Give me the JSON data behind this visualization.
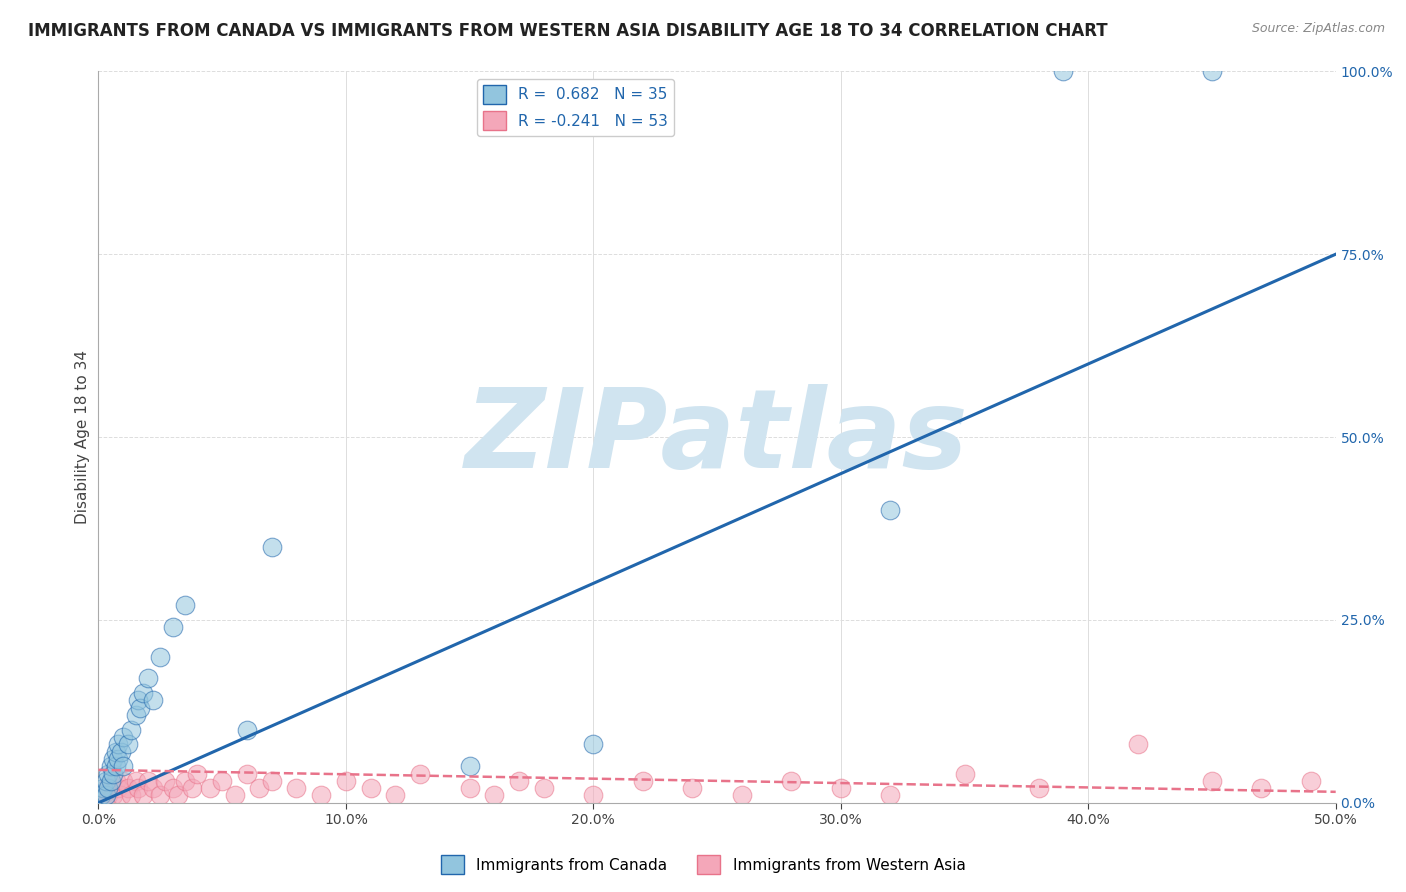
{
  "title": "IMMIGRANTS FROM CANADA VS IMMIGRANTS FROM WESTERN ASIA DISABILITY AGE 18 TO 34 CORRELATION CHART",
  "source": "Source: ZipAtlas.com",
  "ylabel": "Disability Age 18 to 34",
  "xlim": [
    0.0,
    0.5
  ],
  "ylim": [
    0.0,
    1.0
  ],
  "xticks": [
    0.0,
    0.1,
    0.2,
    0.3,
    0.4,
    0.5
  ],
  "xticklabels": [
    "0.0%",
    "10.0%",
    "20.0%",
    "30.0%",
    "40.0%",
    "50.0%"
  ],
  "yticks_right": [
    0.0,
    0.25,
    0.5,
    0.75,
    1.0
  ],
  "yticklabels_right": [
    "0.0%",
    "25.0%",
    "50.0%",
    "75.0%",
    "100.0%"
  ],
  "legend_label_blue": "R =  0.682   N = 35",
  "legend_label_pink": "R = -0.241   N = 53",
  "blue_color": "#92c5de",
  "pink_color": "#f4a7b9",
  "blue_line_color": "#2166ac",
  "pink_line_color": "#e8738a",
  "watermark": "ZIPatlas",
  "watermark_color": "#d0e4f0",
  "background_color": "#ffffff",
  "grid_color": "#dddddd",
  "blue_scatter": [
    [
      0.001,
      0.01
    ],
    [
      0.002,
      0.02
    ],
    [
      0.003,
      0.01
    ],
    [
      0.003,
      0.03
    ],
    [
      0.004,
      0.02
    ],
    [
      0.004,
      0.04
    ],
    [
      0.005,
      0.03
    ],
    [
      0.005,
      0.05
    ],
    [
      0.006,
      0.04
    ],
    [
      0.006,
      0.06
    ],
    [
      0.007,
      0.05
    ],
    [
      0.007,
      0.07
    ],
    [
      0.008,
      0.06
    ],
    [
      0.008,
      0.08
    ],
    [
      0.009,
      0.07
    ],
    [
      0.01,
      0.05
    ],
    [
      0.01,
      0.09
    ],
    [
      0.012,
      0.08
    ],
    [
      0.013,
      0.1
    ],
    [
      0.015,
      0.12
    ],
    [
      0.016,
      0.14
    ],
    [
      0.017,
      0.13
    ],
    [
      0.018,
      0.15
    ],
    [
      0.02,
      0.17
    ],
    [
      0.022,
      0.14
    ],
    [
      0.025,
      0.2
    ],
    [
      0.03,
      0.24
    ],
    [
      0.035,
      0.27
    ],
    [
      0.06,
      0.1
    ],
    [
      0.07,
      0.35
    ],
    [
      0.32,
      0.4
    ],
    [
      0.39,
      1.0
    ],
    [
      0.45,
      1.0
    ],
    [
      0.15,
      0.05
    ],
    [
      0.2,
      0.08
    ]
  ],
  "pink_scatter": [
    [
      0.001,
      0.01
    ],
    [
      0.002,
      0.01
    ],
    [
      0.003,
      0.02
    ],
    [
      0.004,
      0.01
    ],
    [
      0.005,
      0.02
    ],
    [
      0.006,
      0.01
    ],
    [
      0.007,
      0.03
    ],
    [
      0.008,
      0.02
    ],
    [
      0.009,
      0.01
    ],
    [
      0.01,
      0.03
    ],
    [
      0.012,
      0.02
    ],
    [
      0.013,
      0.01
    ],
    [
      0.015,
      0.03
    ],
    [
      0.016,
      0.02
    ],
    [
      0.018,
      0.01
    ],
    [
      0.02,
      0.03
    ],
    [
      0.022,
      0.02
    ],
    [
      0.025,
      0.01
    ],
    [
      0.027,
      0.03
    ],
    [
      0.03,
      0.02
    ],
    [
      0.032,
      0.01
    ],
    [
      0.035,
      0.03
    ],
    [
      0.038,
      0.02
    ],
    [
      0.04,
      0.04
    ],
    [
      0.045,
      0.02
    ],
    [
      0.05,
      0.03
    ],
    [
      0.055,
      0.01
    ],
    [
      0.06,
      0.04
    ],
    [
      0.065,
      0.02
    ],
    [
      0.07,
      0.03
    ],
    [
      0.08,
      0.02
    ],
    [
      0.09,
      0.01
    ],
    [
      0.1,
      0.03
    ],
    [
      0.11,
      0.02
    ],
    [
      0.12,
      0.01
    ],
    [
      0.13,
      0.04
    ],
    [
      0.15,
      0.02
    ],
    [
      0.16,
      0.01
    ],
    [
      0.17,
      0.03
    ],
    [
      0.18,
      0.02
    ],
    [
      0.2,
      0.01
    ],
    [
      0.22,
      0.03
    ],
    [
      0.24,
      0.02
    ],
    [
      0.26,
      0.01
    ],
    [
      0.28,
      0.03
    ],
    [
      0.3,
      0.02
    ],
    [
      0.32,
      0.01
    ],
    [
      0.35,
      0.04
    ],
    [
      0.38,
      0.02
    ],
    [
      0.42,
      0.08
    ],
    [
      0.45,
      0.03
    ],
    [
      0.47,
      0.02
    ],
    [
      0.49,
      0.03
    ]
  ],
  "blue_line": [
    [
      0.0,
      0.0
    ],
    [
      0.5,
      0.75
    ]
  ],
  "pink_line": [
    [
      0.0,
      0.045
    ],
    [
      0.5,
      0.015
    ]
  ],
  "title_fontsize": 12,
  "axis_label_fontsize": 11,
  "tick_fontsize": 10,
  "legend_fontsize": 11,
  "bottom_legend_label_blue": "Immigrants from Canada",
  "bottom_legend_label_pink": "Immigrants from Western Asia"
}
